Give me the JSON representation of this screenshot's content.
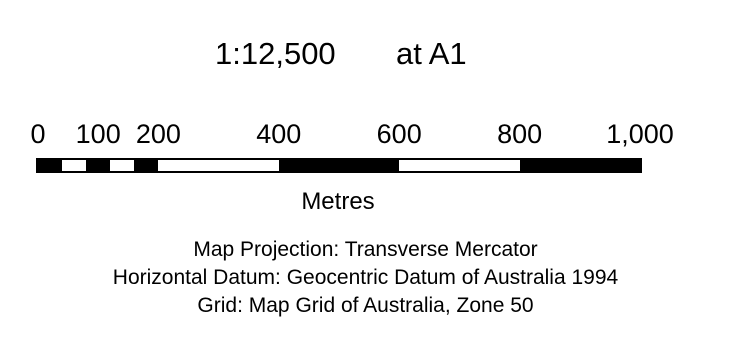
{
  "scale": {
    "ratio": "1:12,500",
    "sheet": "at A1"
  },
  "scale_bar": {
    "min": 0,
    "max": 1000,
    "tick_labels": [
      {
        "value": 0,
        "label": "0"
      },
      {
        "value": 100,
        "label": "100"
      },
      {
        "value": 200,
        "label": "200"
      },
      {
        "value": 400,
        "label": "400"
      },
      {
        "value": 600,
        "label": "600"
      },
      {
        "value": 800,
        "label": "800"
      },
      {
        "value": 1000,
        "label": "1,000"
      }
    ],
    "segments": [
      {
        "from": 0,
        "to": 40,
        "fill": "black"
      },
      {
        "from": 40,
        "to": 80,
        "fill": "white"
      },
      {
        "from": 80,
        "to": 120,
        "fill": "black"
      },
      {
        "from": 120,
        "to": 160,
        "fill": "white"
      },
      {
        "from": 160,
        "to": 200,
        "fill": "black"
      },
      {
        "from": 200,
        "to": 400,
        "fill": "white"
      },
      {
        "from": 400,
        "to": 600,
        "fill": "black"
      },
      {
        "from": 600,
        "to": 800,
        "fill": "white"
      },
      {
        "from": 800,
        "to": 1000,
        "fill": "black"
      }
    ],
    "units": "Metres"
  },
  "notes": {
    "projection": "Map Projection: Transverse Mercator",
    "datum": "Horizontal Datum: Geocentric Datum of Australia 1994",
    "grid": "Grid: Map Grid of Australia, Zone 50"
  },
  "colors": {
    "black": "#000000",
    "white": "#ffffff"
  }
}
